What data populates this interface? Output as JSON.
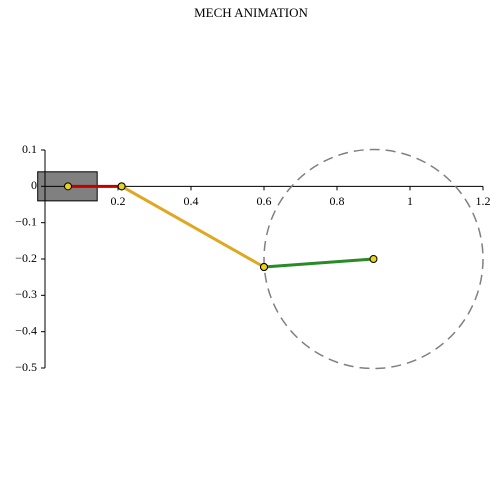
{
  "chart_data": {
    "type": "mechanism",
    "title": "MECH ANIMATION",
    "xlim": [
      0,
      1.2
    ],
    "ylim": [
      -0.5,
      0.1
    ],
    "xticks": [
      0.2,
      0.4,
      0.6,
      0.8,
      1,
      1.2
    ],
    "yticks": [
      0.1,
      0,
      {
        "value": -0.1,
        "label": "−0.1"
      },
      {
        "value": -0.2,
        "label": "−0.2"
      },
      {
        "value": -0.3,
        "label": "−0.3"
      },
      {
        "value": -0.4,
        "label": "−0.4"
      },
      {
        "value": -0.5,
        "label": "−0.5"
      }
    ],
    "block": {
      "x": [
        -0.02,
        0.143
      ],
      "y": [
        -0.04,
        0.04
      ],
      "color": "#808080"
    },
    "circle": {
      "center": [
        0.9,
        -0.2
      ],
      "radius": 0.3,
      "color": "#808080"
    },
    "series": [
      {
        "color": "#c00000",
        "x": [
          0.063,
          0.21
        ],
        "y": [
          0,
          0
        ]
      },
      {
        "color": "#e0a820",
        "x": [
          0.21,
          0.6
        ],
        "y": [
          0,
          -0.222
        ]
      },
      {
        "color": "#2a8a2a",
        "x": [
          0.6,
          0.9
        ],
        "y": [
          -0.222,
          -0.2
        ]
      }
    ],
    "pin_color": "#e6d31c"
  }
}
